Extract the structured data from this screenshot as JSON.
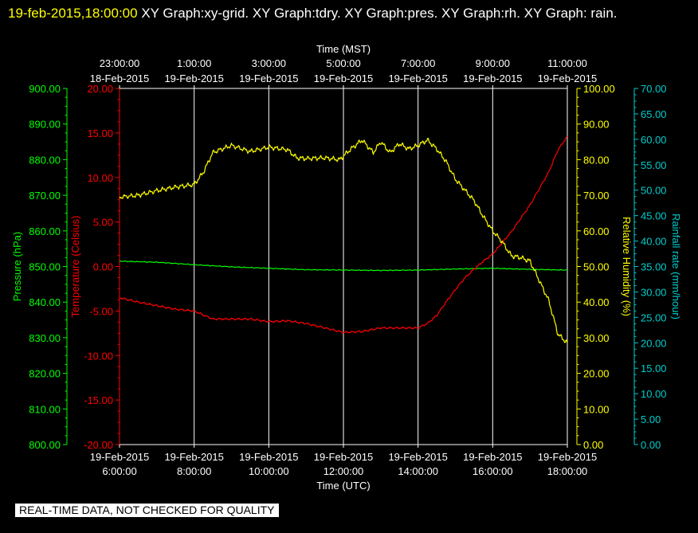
{
  "header": {
    "timestamp": "19-feb-2015,18:00:00",
    "graphs_text": "XY Graph:xy-grid.  XY Graph:tdry.  XY Graph:pres.  XY Graph:rh.  XY Graph: rain."
  },
  "footer": {
    "banner": "REAL-TIME DATA, NOT CHECKED FOR QUALITY"
  },
  "colors": {
    "background": "#000000",
    "pressure": "#00ff00",
    "temperature": "#ff0000",
    "humidity": "#ffff00",
    "rainfall": "#00cccc",
    "grid": "#ffffff"
  },
  "chart_data": {
    "type": "line",
    "grid": true,
    "x_range_utc_hours": [
      6,
      18
    ],
    "top_axis": {
      "title": "Time (MST)",
      "ticks": [
        {
          "time": "23:00:00",
          "date": "18-Feb-2015"
        },
        {
          "time": "1:00:00",
          "date": "19-Feb-2015"
        },
        {
          "time": "3:00:00",
          "date": "19-Feb-2015"
        },
        {
          "time": "5:00:00",
          "date": "19-Feb-2015"
        },
        {
          "time": "7:00:00",
          "date": "19-Feb-2015"
        },
        {
          "time": "9:00:00",
          "date": "19-Feb-2015"
        },
        {
          "time": "11:00:00",
          "date": "19-Feb-2015"
        }
      ]
    },
    "bottom_axis": {
      "title": "Time (UTC)",
      "ticks": [
        {
          "date": "19-Feb-2015",
          "time": "6:00:00"
        },
        {
          "date": "19-Feb-2015",
          "time": "8:00:00"
        },
        {
          "date": "19-Feb-2015",
          "time": "10:00:00"
        },
        {
          "date": "19-Feb-2015",
          "time": "12:00:00"
        },
        {
          "date": "19-Feb-2015",
          "time": "14:00:00"
        },
        {
          "date": "19-Feb-2015",
          "time": "16:00:00"
        },
        {
          "date": "19-Feb-2015",
          "time": "18:00:00"
        }
      ]
    },
    "axes": {
      "pressure": {
        "label": "Pressure (hPa)",
        "range": [
          800,
          900
        ],
        "ticks": [
          "900.00",
          "890.00",
          "880.00",
          "870.00",
          "860.00",
          "850.00",
          "840.00",
          "830.00",
          "820.00",
          "810.00",
          "800.00"
        ]
      },
      "temperature": {
        "label": "Temperature (Celsius)",
        "range": [
          -20,
          20
        ],
        "ticks": [
          "20.00",
          "15.00",
          "10.00",
          "5.00",
          "0.00",
          "-5.00",
          "-10.00",
          "-15.00",
          "-20.00"
        ]
      },
      "humidity": {
        "label": "Relative Humidity (%)",
        "range": [
          0,
          100
        ],
        "ticks": [
          "100.00",
          "90.00",
          "80.00",
          "70.00",
          "60.00",
          "50.00",
          "40.00",
          "30.00",
          "20.00",
          "10.00",
          "0.00"
        ]
      },
      "rainfall": {
        "label": "Rainfall rate (mm/hour)",
        "range": [
          0,
          70
        ],
        "ticks": [
          "70.00",
          "65.00",
          "60.00",
          "55.00",
          "50.00",
          "45.00",
          "40.00",
          "35.00",
          "30.00",
          "25.00",
          "20.00",
          "15.00",
          "10.00",
          "5.00",
          "0.00"
        ]
      }
    },
    "series": [
      {
        "name": "pres",
        "axis": "pressure",
        "x": [
          6,
          7,
          8,
          9,
          10,
          11,
          12,
          13,
          14,
          15,
          16,
          17,
          18
        ],
        "y": [
          851.5,
          851.2,
          850.5,
          849.9,
          849.5,
          849.1,
          849.0,
          848.9,
          849.0,
          849.3,
          849.5,
          849.2,
          849.0
        ]
      },
      {
        "name": "tdry",
        "axis": "temperature",
        "x": [
          6,
          6.5,
          7,
          7.5,
          8,
          8.5,
          9,
          9.5,
          10,
          10.5,
          11,
          11.5,
          12,
          12.5,
          13,
          13.5,
          14,
          14.25,
          14.5,
          14.75,
          15,
          15.25,
          15.5,
          15.75,
          16,
          16.5,
          17,
          17.5,
          17.75,
          18
        ],
        "y": [
          -3.5,
          -4.0,
          -4.4,
          -4.8,
          -5.0,
          -5.9,
          -5.9,
          -5.9,
          -6.2,
          -6.1,
          -6.4,
          -6.9,
          -7.4,
          -7.3,
          -6.9,
          -6.9,
          -6.9,
          -6.4,
          -5.5,
          -4.0,
          -2.6,
          -1.3,
          -0.3,
          0.6,
          1.4,
          3.9,
          6.9,
          10.6,
          13.1,
          14.6
        ]
      },
      {
        "name": "rh",
        "axis": "humidity",
        "x": [
          6,
          6.5,
          7,
          7.5,
          8,
          8.25,
          8.5,
          9,
          9.5,
          10,
          10.5,
          10.75,
          11,
          11.5,
          11.9,
          12.2,
          12.5,
          12.8,
          13,
          13.25,
          13.5,
          13.75,
          14,
          14.25,
          14.5,
          14.75,
          15,
          15.25,
          15.5,
          15.75,
          16,
          16.25,
          16.5,
          16.75,
          17,
          17.25,
          17.5,
          17.75,
          18
        ],
        "y": [
          69.5,
          70.0,
          71.3,
          72.3,
          73.0,
          76.5,
          82.0,
          84.0,
          82.3,
          83.5,
          82.8,
          80.5,
          80.3,
          80.5,
          80.0,
          83.0,
          85.5,
          82.0,
          85.0,
          82.0,
          84.5,
          83.0,
          84.0,
          85.5,
          83.0,
          79.5,
          74.5,
          71.5,
          68.5,
          64.0,
          60.0,
          57.0,
          53.0,
          52.5,
          51.5,
          46.0,
          40.5,
          31.0,
          28.5
        ]
      },
      {
        "name": "rain",
        "axis": "rainfall",
        "x": [
          6,
          18
        ],
        "y": [
          0,
          0
        ]
      }
    ]
  }
}
